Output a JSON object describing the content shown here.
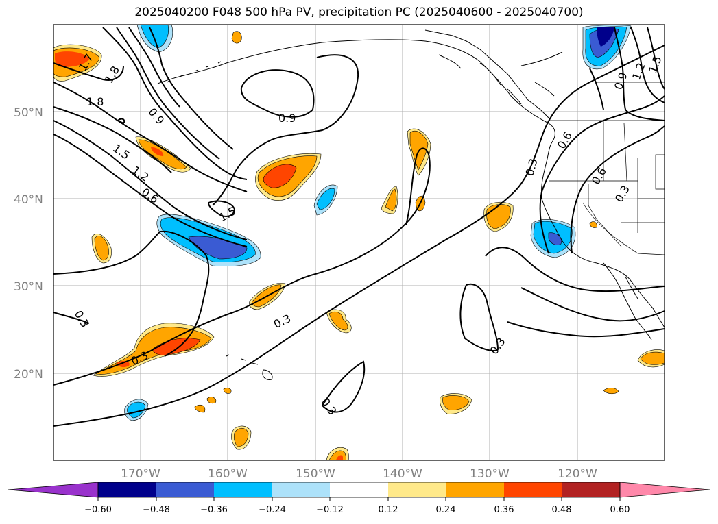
{
  "title": "2025040200 F048 500 hPa PV, precipitation PC (2025040600 - 2025040700)",
  "map": {
    "lat_labels": [
      "50°N",
      "40°N",
      "30°N",
      "20°N"
    ],
    "lon_labels": [
      "170°W",
      "160°W",
      "150°W",
      "140°W",
      "130°W",
      "120°W"
    ],
    "contour_labels": [
      "1.7",
      "1.8",
      "1.8",
      "0.9",
      "0.9",
      "1.5",
      "1.2",
      "0.6",
      "1.5",
      "0.3",
      "0.3",
      "0.3",
      "0.3",
      "0.3",
      "0.3",
      "0.6",
      "0.6",
      "0.3",
      "0.9",
      "1.2",
      "1.5"
    ]
  },
  "colorbar": {
    "colors": [
      "#9932CC",
      "#00008B",
      "#3A5BD3",
      "#00BFFF",
      "#ADE2FA",
      "#FFFFFF",
      "#FFE98A",
      "#FFA500",
      "#FF4500",
      "#B22222",
      "#FF88AA"
    ],
    "ticks": [
      "−0.60",
      "−0.48",
      "−0.36",
      "−0.24",
      "−0.12",
      "0.12",
      "0.24",
      "0.36",
      "0.48",
      "0.60"
    ]
  }
}
